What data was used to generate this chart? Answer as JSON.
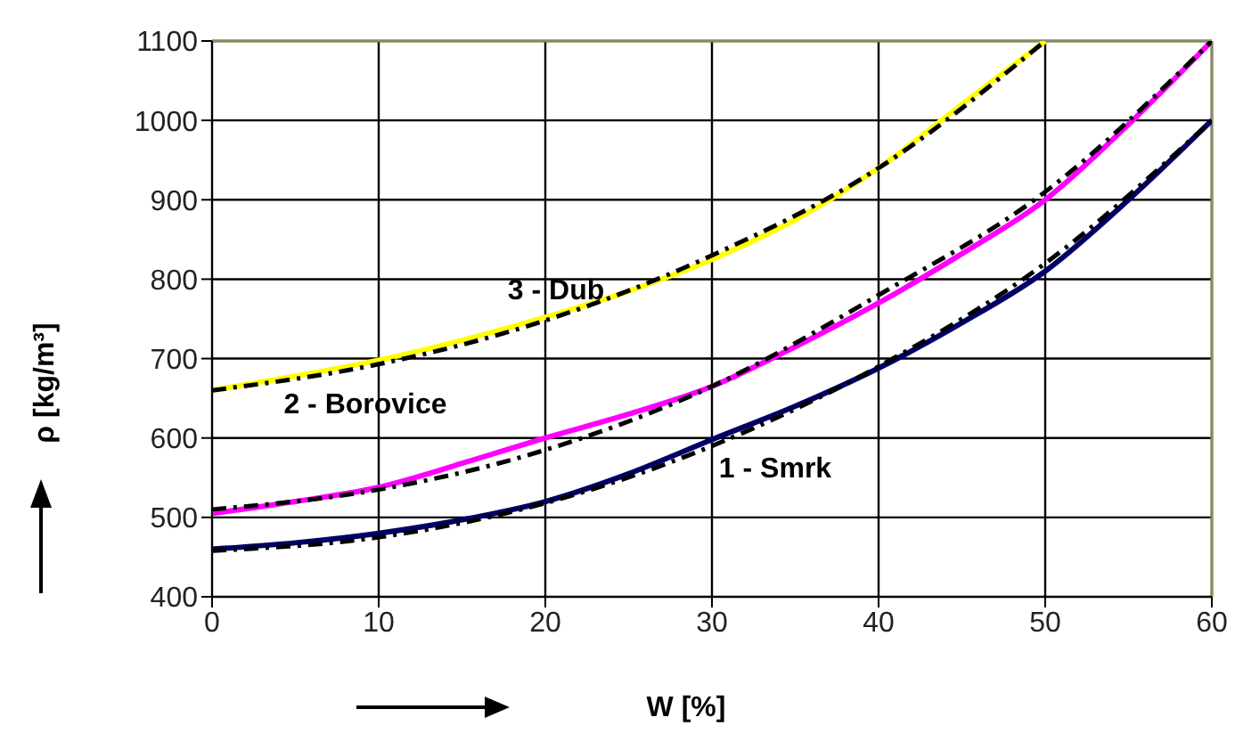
{
  "chart_data": {
    "type": "line",
    "xlabel": "W [%]",
    "ylabel": "ρ [kg/m³]",
    "xlim": [
      0,
      60
    ],
    "xticks": [
      0,
      10,
      20,
      30,
      40,
      50,
      60
    ],
    "ylim": [
      400,
      1100
    ],
    "yticks": [
      400,
      500,
      600,
      700,
      800,
      900,
      1000,
      1100
    ],
    "grid": true,
    "marker": "none",
    "series": [
      {
        "color": "#000066",
        "line_style": "solid",
        "x": [
          0,
          5,
          10,
          15,
          20,
          25,
          30,
          35,
          40,
          45,
          50,
          55,
          60
        ],
        "values": [
          460,
          468,
          480,
          497,
          520,
          555,
          598,
          640,
          688,
          745,
          810,
          900,
          1000
        ]
      },
      {
        "color": "#ff00ff",
        "line_style": "solid",
        "x": [
          0,
          5,
          10,
          15,
          20,
          25,
          30,
          35,
          40,
          45,
          50,
          55,
          60
        ],
        "values": [
          505,
          520,
          538,
          568,
          600,
          630,
          665,
          715,
          770,
          832,
          900,
          995,
          1100
        ]
      },
      {
        "color": "#ffff00",
        "line_style": "solid",
        "x": [
          0,
          5,
          10,
          15,
          20,
          25,
          30,
          35,
          40,
          45,
          50
        ],
        "values": [
          660,
          678,
          698,
          723,
          752,
          785,
          825,
          875,
          940,
          1020,
          1100
        ]
      },
      {
        "color": "#000000",
        "line_style": "dashed",
        "x": [
          0,
          10,
          20,
          30,
          40,
          50,
          60
        ],
        "values": [
          458,
          475,
          518,
          590,
          690,
          820,
          1000
        ]
      },
      {
        "color": "#000000",
        "line_style": "dashed",
        "x": [
          0,
          10,
          20,
          30,
          40,
          50,
          60
        ],
        "values": [
          510,
          535,
          585,
          665,
          780,
          910,
          1100
        ]
      },
      {
        "color": "#000000",
        "line_style": "dashed",
        "x": [
          0,
          10,
          20,
          30,
          40,
          50
        ],
        "values": [
          660,
          693,
          748,
          830,
          940,
          1100
        ]
      }
    ],
    "annotations": [
      "1 - Smrk",
      "2 - Borovice",
      "3 - Dub"
    ]
  }
}
